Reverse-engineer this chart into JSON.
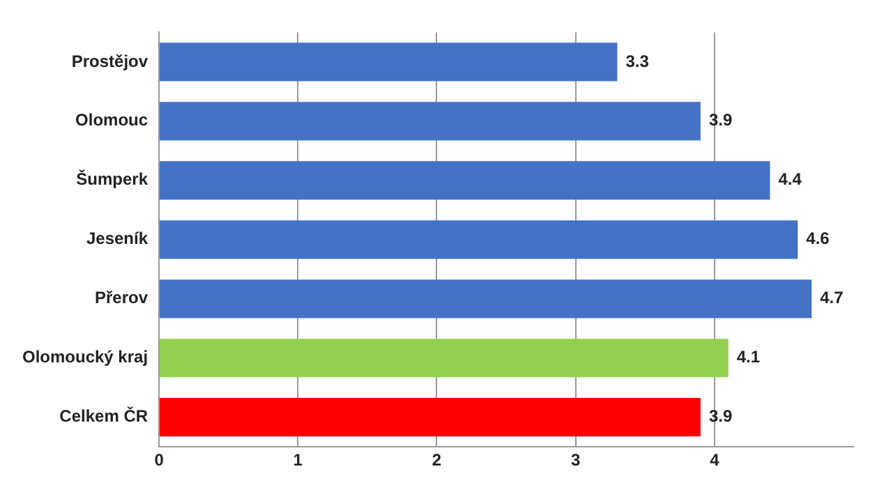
{
  "chart_data": {
    "type": "bar",
    "orientation": "horizontal",
    "categories": [
      "Prostějov",
      "Olomouc",
      "Šumperk",
      "Jeseník",
      "Přerov",
      "Olomoucký kraj",
      "Celkem ČR"
    ],
    "values": [
      3.3,
      3.9,
      4.4,
      4.6,
      4.7,
      4.1,
      3.9
    ],
    "colors": [
      "#4472c4",
      "#4472c4",
      "#4472c4",
      "#4472c4",
      "#4472c4",
      "#92d050",
      "#ff0000"
    ],
    "xlim": [
      0,
      5
    ],
    "xticks": [
      0,
      1,
      2,
      3,
      4
    ],
    "grid": "x",
    "data_labels": true,
    "legend": false
  }
}
